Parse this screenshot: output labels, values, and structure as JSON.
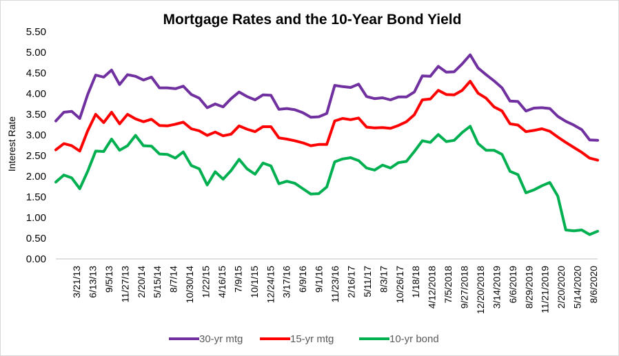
{
  "chart_data": {
    "type": "line",
    "title": "Mortgage Rates and the 10-Year Bond Yield",
    "xlabel": "",
    "ylabel": "Interest Rate",
    "ylim": [
      0,
      5.5
    ],
    "yticks": [
      "0.00",
      "0.50",
      "1.00",
      "1.50",
      "2.00",
      "2.50",
      "3.00",
      "3.50",
      "4.00",
      "4.50",
      "5.00",
      "5.50"
    ],
    "grid": false,
    "legend": "bottom",
    "xtick_labels": [
      "3/21/13",
      "6/13/13",
      "9/5/13",
      "11/27/13",
      "2/20/14",
      "5/15/14",
      "8/7/14",
      "10/30/14",
      "1/22/15",
      "4/16/15",
      "7/9/15",
      "10/1/15",
      "12/24/15",
      "3/17/16",
      "6/9/16",
      "9/1/16",
      "11/23/16",
      "2/16/17",
      "5/11/17",
      "8/3/17",
      "10/26/17",
      "1/18/18",
      "4/12/2018",
      "7/5/2018",
      "9/27/2018",
      "12/20/2018",
      "3/14/2019",
      "6/6/2019",
      "8/29/2019",
      "11/21/2019",
      "2/20/2020",
      "5/14/2020",
      "8/6/2020"
    ],
    "x": [
      "1/3/13",
      "2/7/13",
      "3/21/13",
      "5/2/13",
      "6/13/13",
      "7/11/13",
      "8/8/13",
      "9/5/13",
      "10/3/13",
      "11/27/13",
      "1/2/14",
      "2/20/14",
      "4/3/14",
      "5/15/14",
      "6/26/14",
      "8/7/14",
      "9/18/14",
      "10/30/14",
      "12/11/14",
      "1/22/15",
      "3/5/15",
      "4/16/15",
      "5/28/15",
      "7/9/15",
      "8/20/15",
      "10/1/15",
      "11/12/15",
      "12/24/15",
      "2/4/16",
      "3/17/16",
      "4/28/16",
      "6/9/16",
      "7/21/16",
      "9/1/16",
      "10/13/16",
      "11/23/16",
      "1/5/17",
      "2/16/17",
      "3/30/17",
      "5/11/17",
      "6/22/17",
      "8/3/17",
      "9/14/17",
      "10/26/17",
      "12/7/17",
      "1/18/18",
      "3/1/18",
      "4/12/2018",
      "5/24/2018",
      "7/5/2018",
      "8/16/2018",
      "9/27/2018",
      "11/8/2018",
      "12/20/2018",
      "1/31/2019",
      "3/14/2019",
      "4/25/2019",
      "6/6/2019",
      "7/18/2019",
      "8/29/2019",
      "10/10/2019",
      "11/21/2019",
      "1/9/2020",
      "2/20/2020",
      "4/2/2020",
      "5/14/2020",
      "6/25/2020",
      "8/6/2020",
      "9/17/2020"
    ],
    "series": [
      {
        "name": "30-yr mtg",
        "color": "#7030a0",
        "values": [
          3.34,
          3.55,
          3.57,
          3.4,
          3.98,
          4.45,
          4.4,
          4.57,
          4.22,
          4.46,
          4.42,
          4.33,
          4.4,
          4.14,
          4.14,
          4.12,
          4.18,
          3.98,
          3.89,
          3.66,
          3.75,
          3.68,
          3.88,
          4.04,
          3.93,
          3.85,
          3.97,
          3.96,
          3.62,
          3.64,
          3.61,
          3.54,
          3.43,
          3.44,
          3.52,
          4.2,
          4.17,
          4.15,
          4.23,
          3.93,
          3.88,
          3.9,
          3.85,
          3.92,
          3.92,
          4.04,
          4.43,
          4.42,
          4.66,
          4.52,
          4.53,
          4.72,
          4.94,
          4.62,
          4.46,
          4.31,
          4.14,
          3.82,
          3.81,
          3.58,
          3.65,
          3.66,
          3.64,
          3.45,
          3.33,
          3.24,
          3.13,
          2.88,
          2.87
        ]
      },
      {
        "name": "15-yr mtg",
        "color": "#ff0000",
        "values": [
          2.64,
          2.79,
          2.74,
          2.61,
          3.1,
          3.5,
          3.3,
          3.55,
          3.27,
          3.5,
          3.39,
          3.32,
          3.38,
          3.23,
          3.22,
          3.26,
          3.31,
          3.15,
          3.1,
          2.99,
          3.07,
          2.98,
          3.02,
          3.22,
          3.14,
          3.08,
          3.2,
          3.2,
          2.93,
          2.9,
          2.86,
          2.81,
          2.74,
          2.77,
          2.77,
          3.34,
          3.4,
          3.37,
          3.41,
          3.19,
          3.17,
          3.18,
          3.16,
          3.23,
          3.32,
          3.49,
          3.85,
          3.87,
          4.08,
          3.98,
          3.97,
          4.08,
          4.3,
          4.01,
          3.89,
          3.68,
          3.58,
          3.27,
          3.24,
          3.08,
          3.11,
          3.15,
          3.09,
          2.95,
          2.82,
          2.7,
          2.58,
          2.44,
          2.39
        ]
      },
      {
        "name": "10-yr bond",
        "color": "#00b050",
        "values": [
          1.86,
          2.03,
          1.96,
          1.7,
          2.12,
          2.61,
          2.6,
          2.9,
          2.63,
          2.74,
          2.99,
          2.74,
          2.73,
          2.54,
          2.53,
          2.44,
          2.59,
          2.26,
          2.18,
          1.79,
          2.11,
          1.93,
          2.14,
          2.41,
          2.18,
          2.05,
          2.32,
          2.25,
          1.82,
          1.88,
          1.83,
          1.7,
          1.57,
          1.58,
          1.74,
          2.35,
          2.42,
          2.45,
          2.38,
          2.2,
          2.15,
          2.27,
          2.2,
          2.33,
          2.36,
          2.6,
          2.86,
          2.82,
          3.01,
          2.84,
          2.87,
          3.06,
          3.21,
          2.79,
          2.63,
          2.63,
          2.53,
          2.12,
          2.04,
          1.6,
          1.67,
          1.77,
          1.85,
          1.52,
          0.7,
          0.68,
          0.7,
          0.59,
          0.67
        ]
      }
    ]
  }
}
